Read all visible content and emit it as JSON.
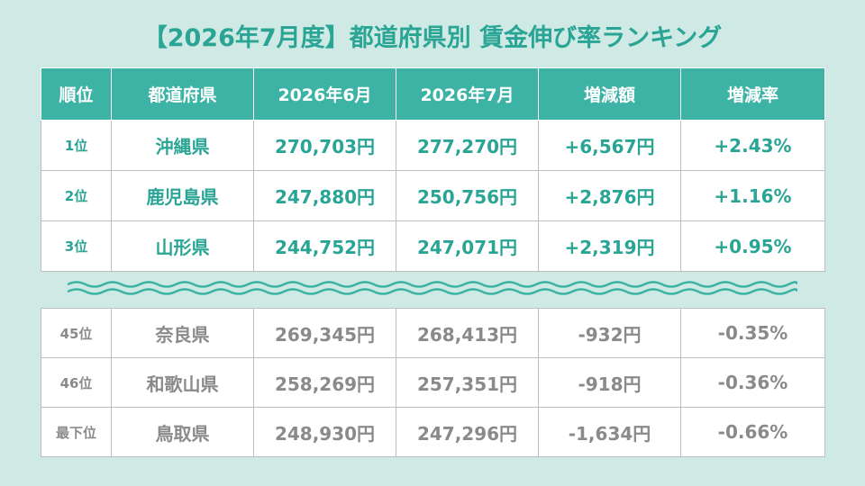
{
  "title": "【2026年7月度】都道府県別 賃金伸び率ランキング",
  "headers": [
    "順位",
    "都道府県",
    "2026年6月",
    "2026年7月",
    "増減額",
    "増減率"
  ],
  "top_rows": [
    {
      "rank": "1位",
      "pref": "沖縄県",
      "jun": "270,703円",
      "jul": "277,270円",
      "diff": "+6,567円",
      "rate": "+2.43%"
    },
    {
      "rank": "2位",
      "pref": "鹿児島県",
      "jun": "247,880円",
      "jul": "250,756円",
      "diff": "+2,876円",
      "rate": "+1.16%"
    },
    {
      "rank": "3位",
      "pref": "山形県",
      "jun": "244,752円",
      "jul": "247,071円",
      "diff": "+2,319円",
      "rate": "+0.95%"
    }
  ],
  "bottom_rows": [
    {
      "rank": "45位",
      "pref": "奈良県",
      "jun": "269,345円",
      "jul": "268,413円",
      "diff": "-932円",
      "rate": "-0.35%"
    },
    {
      "rank": "46位",
      "pref": "和歌山県",
      "jun": "258,269円",
      "jul": "257,351円",
      "diff": "-918円",
      "rate": "-0.36%"
    },
    {
      "rank": "最下位",
      "pref": "鳥取県",
      "jun": "248,930円",
      "jul": "247,296円",
      "diff": "-1,634円",
      "rate": "-0.66%"
    }
  ],
  "colors": {
    "background": "#cfe9e4",
    "accent": "#3cb3a4",
    "accent_text": "#2aa595",
    "muted_text": "#8a8a8a"
  }
}
